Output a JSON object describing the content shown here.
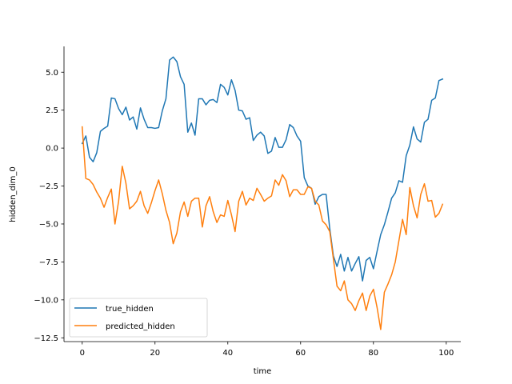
{
  "chart_data": {
    "type": "line",
    "title": "",
    "xlabel": "time",
    "ylabel": "hidden_dim_0",
    "xlim": [
      -5,
      104
    ],
    "ylim": [
      -12.75,
      6.7
    ],
    "xticks": [
      0,
      20,
      40,
      60,
      80,
      100
    ],
    "yticks": [
      5.0,
      2.5,
      0.0,
      -2.5,
      -5.0,
      -7.5,
      -10.0,
      -12.5
    ],
    "xtick_labels": [
      "0",
      "20",
      "40",
      "60",
      "80",
      "100"
    ],
    "ytick_labels": [
      "5.0",
      "2.5",
      "0.0",
      "−2.5",
      "−5.0",
      "−7.5",
      "−10.0",
      "−12.5"
    ],
    "grid": false,
    "legend_position": "lower-left",
    "series": [
      {
        "name": "true_hidden",
        "color": "#1f77b4",
        "x": [
          0,
          1,
          2,
          3,
          4,
          5,
          6,
          7,
          8,
          9,
          10,
          11,
          12,
          13,
          14,
          15,
          16,
          17,
          18,
          19,
          20,
          21,
          22,
          23,
          24,
          25,
          26,
          27,
          28,
          29,
          30,
          31,
          32,
          33,
          34,
          35,
          36,
          37,
          38,
          39,
          40,
          41,
          42,
          43,
          44,
          45,
          46,
          47,
          48,
          49,
          50,
          51,
          52,
          53,
          54,
          55,
          56,
          57,
          58,
          59,
          60,
          61,
          62,
          63,
          64,
          65,
          66,
          67,
          68,
          69,
          70,
          71,
          72,
          73,
          74,
          75,
          76,
          77,
          78,
          79,
          80,
          81,
          82,
          83,
          84,
          85,
          86,
          87,
          88,
          89,
          90,
          91,
          92,
          93,
          94,
          95,
          96,
          97,
          98,
          99
        ],
        "values": [
          0.3,
          0.8,
          -0.6,
          -0.9,
          -0.3,
          1.1,
          1.3,
          1.45,
          3.3,
          3.25,
          2.6,
          2.2,
          2.7,
          1.85,
          2.05,
          1.25,
          2.65,
          1.9,
          1.35,
          1.35,
          1.3,
          1.35,
          2.45,
          3.25,
          5.8,
          6.0,
          5.7,
          4.7,
          4.2,
          1.05,
          1.65,
          0.85,
          3.25,
          3.25,
          2.85,
          3.15,
          3.2,
          3.0,
          4.2,
          4.0,
          3.5,
          4.5,
          3.8,
          2.5,
          2.45,
          1.9,
          2.0,
          0.5,
          0.85,
          1.05,
          0.8,
          -0.35,
          -0.2,
          0.7,
          0.05,
          0.05,
          0.55,
          1.55,
          1.35,
          0.8,
          0.45,
          -1.95,
          -2.5,
          -2.65,
          -3.7,
          -3.2,
          -3.05,
          -3.05,
          -5.3,
          -7.1,
          -7.8,
          -7.0,
          -8.1,
          -7.2,
          -8.1,
          -7.6,
          -7.15,
          -8.75,
          -7.4,
          -7.2,
          -7.95,
          -6.8,
          -5.7,
          -5.05,
          -4.2,
          -3.3,
          -2.95,
          -2.15,
          -2.25,
          -0.5,
          0.2,
          1.4,
          0.6,
          0.4,
          1.7,
          1.9,
          3.15,
          3.3,
          4.45,
          4.55
        ]
      },
      {
        "name": "predicted_hidden",
        "color": "#ff7f0e",
        "x": [
          0,
          1,
          2,
          3,
          4,
          5,
          6,
          7,
          8,
          9,
          10,
          11,
          12,
          13,
          14,
          15,
          16,
          17,
          18,
          19,
          20,
          21,
          22,
          23,
          24,
          25,
          26,
          27,
          28,
          29,
          30,
          31,
          32,
          33,
          34,
          35,
          36,
          37,
          38,
          39,
          40,
          41,
          42,
          43,
          44,
          45,
          46,
          47,
          48,
          49,
          50,
          51,
          52,
          53,
          54,
          55,
          56,
          57,
          58,
          59,
          60,
          61,
          62,
          63,
          64,
          65,
          66,
          67,
          68,
          69,
          70,
          71,
          72,
          73,
          74,
          75,
          76,
          77,
          78,
          79,
          80,
          81,
          82,
          83,
          84,
          85,
          86,
          87,
          88,
          89,
          90,
          91,
          92,
          93,
          94,
          95,
          96,
          97,
          98,
          99
        ],
        "values": [
          1.4,
          -2.0,
          -2.1,
          -2.4,
          -2.9,
          -3.3,
          -3.9,
          -3.25,
          -2.7,
          -5.0,
          -3.5,
          -1.2,
          -2.3,
          -4.0,
          -3.8,
          -3.5,
          -2.85,
          -3.8,
          -4.3,
          -3.6,
          -2.8,
          -2.1,
          -3.0,
          -4.1,
          -4.9,
          -6.3,
          -5.6,
          -4.2,
          -3.55,
          -4.5,
          -3.5,
          -3.3,
          -3.3,
          -5.2,
          -3.8,
          -3.2,
          -4.2,
          -4.9,
          -4.4,
          -4.5,
          -3.45,
          -4.4,
          -5.5,
          -3.5,
          -2.85,
          -3.75,
          -3.3,
          -3.45,
          -2.65,
          -3.05,
          -3.5,
          -3.3,
          -3.15,
          -2.1,
          -2.45,
          -1.75,
          -2.15,
          -3.2,
          -2.75,
          -2.75,
          -3.05,
          -3.05,
          -2.55,
          -2.65,
          -3.5,
          -3.75,
          -4.8,
          -5.05,
          -5.5,
          -7.3,
          -9.1,
          -9.4,
          -8.75,
          -10.0,
          -10.25,
          -10.7,
          -10.05,
          -9.55,
          -10.7,
          -9.75,
          -9.3,
          -10.5,
          -11.95,
          -9.5,
          -8.95,
          -8.35,
          -7.5,
          -6.1,
          -4.7,
          -5.7,
          -2.6,
          -3.8,
          -4.6,
          -3.05,
          -2.35,
          -3.5,
          -3.45,
          -4.55,
          -4.3,
          -3.7
        ]
      }
    ]
  }
}
